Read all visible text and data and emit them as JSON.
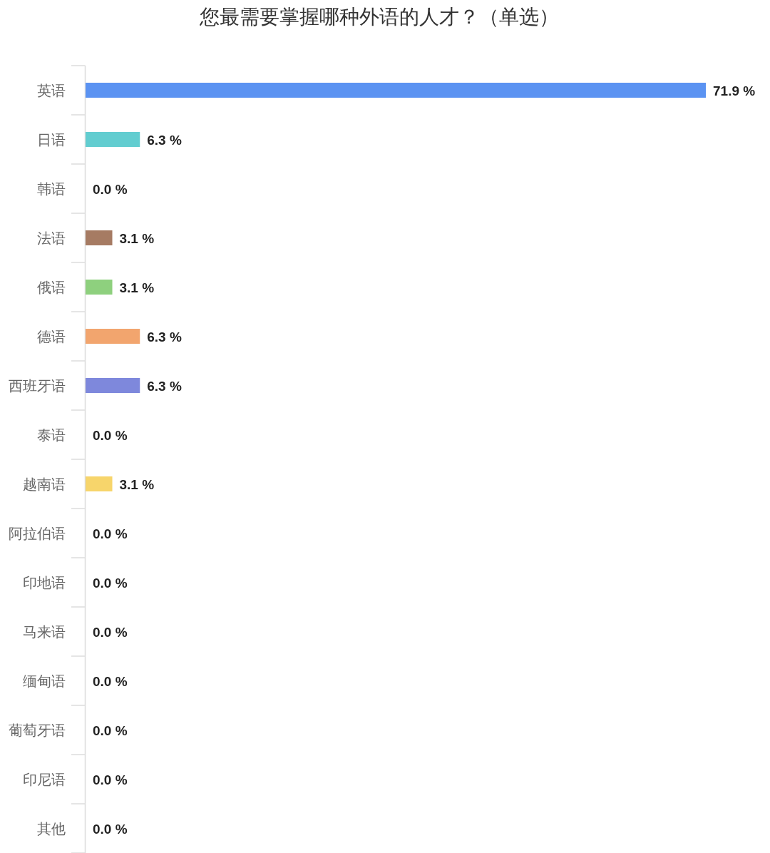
{
  "chart_data": {
    "type": "bar",
    "orientation": "horizontal",
    "title": "您最需要掌握哪种外语的人才？（单选）",
    "categories": [
      "英语",
      "日语",
      "韩语",
      "法语",
      "俄语",
      "德语",
      "西班牙语",
      "泰语",
      "越南语",
      "阿拉伯语",
      "印地语",
      "马来语",
      "缅甸语",
      "葡萄牙语",
      "印尼语",
      "其他"
    ],
    "values": [
      71.9,
      6.3,
      0.0,
      3.1,
      3.1,
      6.3,
      6.3,
      0.0,
      3.1,
      0.0,
      0.0,
      0.0,
      0.0,
      0.0,
      0.0,
      0.0
    ],
    "colors": [
      "#5b93f2",
      "#62cdd0",
      null,
      "#a67b63",
      "#8ed07e",
      "#f2a56e",
      "#7e88dc",
      null,
      "#f7d56b",
      null,
      null,
      null,
      null,
      null,
      null,
      null
    ],
    "value_labels": [
      "71.9 %",
      "6.3 %",
      "0.0 %",
      "3.1 %",
      "3.1 %",
      "6.3 %",
      "6.3 %",
      "0.0 %",
      "3.1 %",
      "0.0 %",
      "0.0 %",
      "0.0 %",
      "0.0 %",
      "0.0 %",
      "0.0 %",
      "0.0 %"
    ]
  }
}
